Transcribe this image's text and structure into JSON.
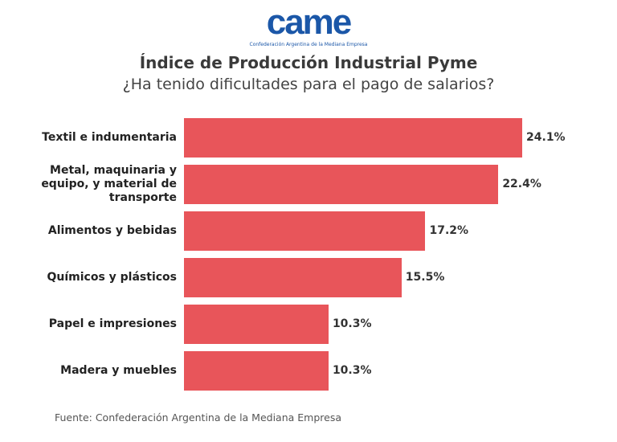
{
  "chart_data": {
    "type": "bar",
    "logo_text": "came",
    "logo_caption": "Confederación Argentina de la Mediana Empresa",
    "title": "Índice de Producción Industrial Pyme",
    "subtitle": "¿Ha tenido dificultades para el pago de salarios?",
    "categories": [
      "Textil e indumentaria",
      "Metal, maquinaria y equipo, y material de transporte",
      "Alimentos y bebidas",
      "Químicos y plásticos",
      "Papel e impresiones",
      "Madera y muebles"
    ],
    "values": [
      24.1,
      22.4,
      17.2,
      15.5,
      10.3,
      10.3
    ],
    "value_labels": [
      "24.1%",
      "22.4%",
      "17.2%",
      "15.5%",
      "10.3%",
      "10.3%"
    ],
    "color": "#e8555a",
    "source": "Fuente: Confederación Argentina de la Mediana Empresa"
  }
}
